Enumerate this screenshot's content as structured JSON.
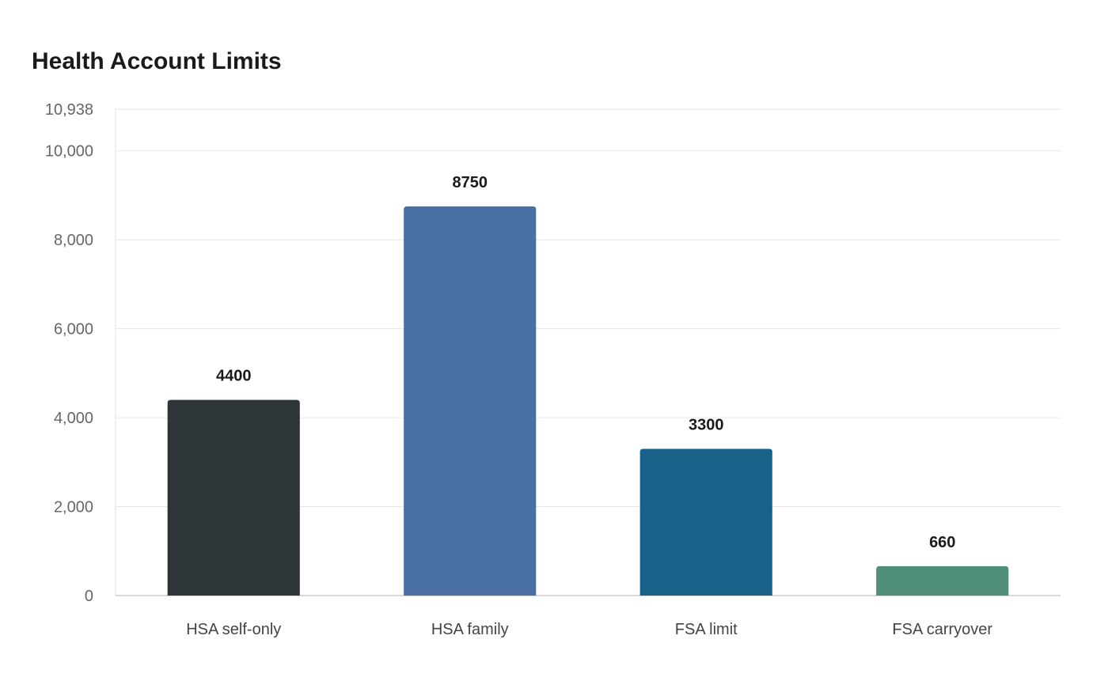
{
  "chart_data": {
    "type": "bar",
    "title": "Health Account Limits",
    "xlabel": "",
    "ylabel": "",
    "categories": [
      "HSA self-only",
      "HSA family",
      "FSA limit",
      "FSA carryover"
    ],
    "values": [
      4400,
      8750,
      3300,
      660
    ],
    "value_labels": [
      "4400",
      "8750",
      "3300",
      "660"
    ],
    "colors": [
      "#2e3538",
      "#4a6fa5",
      "#18628a",
      "#4e8e7a"
    ],
    "ylim": [
      0,
      10938
    ],
    "yticks": [
      0,
      2000,
      4000,
      6000,
      8000,
      10000,
      10938
    ],
    "ytick_labels": [
      "0",
      "2,000",
      "4,000",
      "6,000",
      "8,000",
      "10,000",
      "10,938"
    ],
    "grid": true,
    "legend": "none"
  }
}
